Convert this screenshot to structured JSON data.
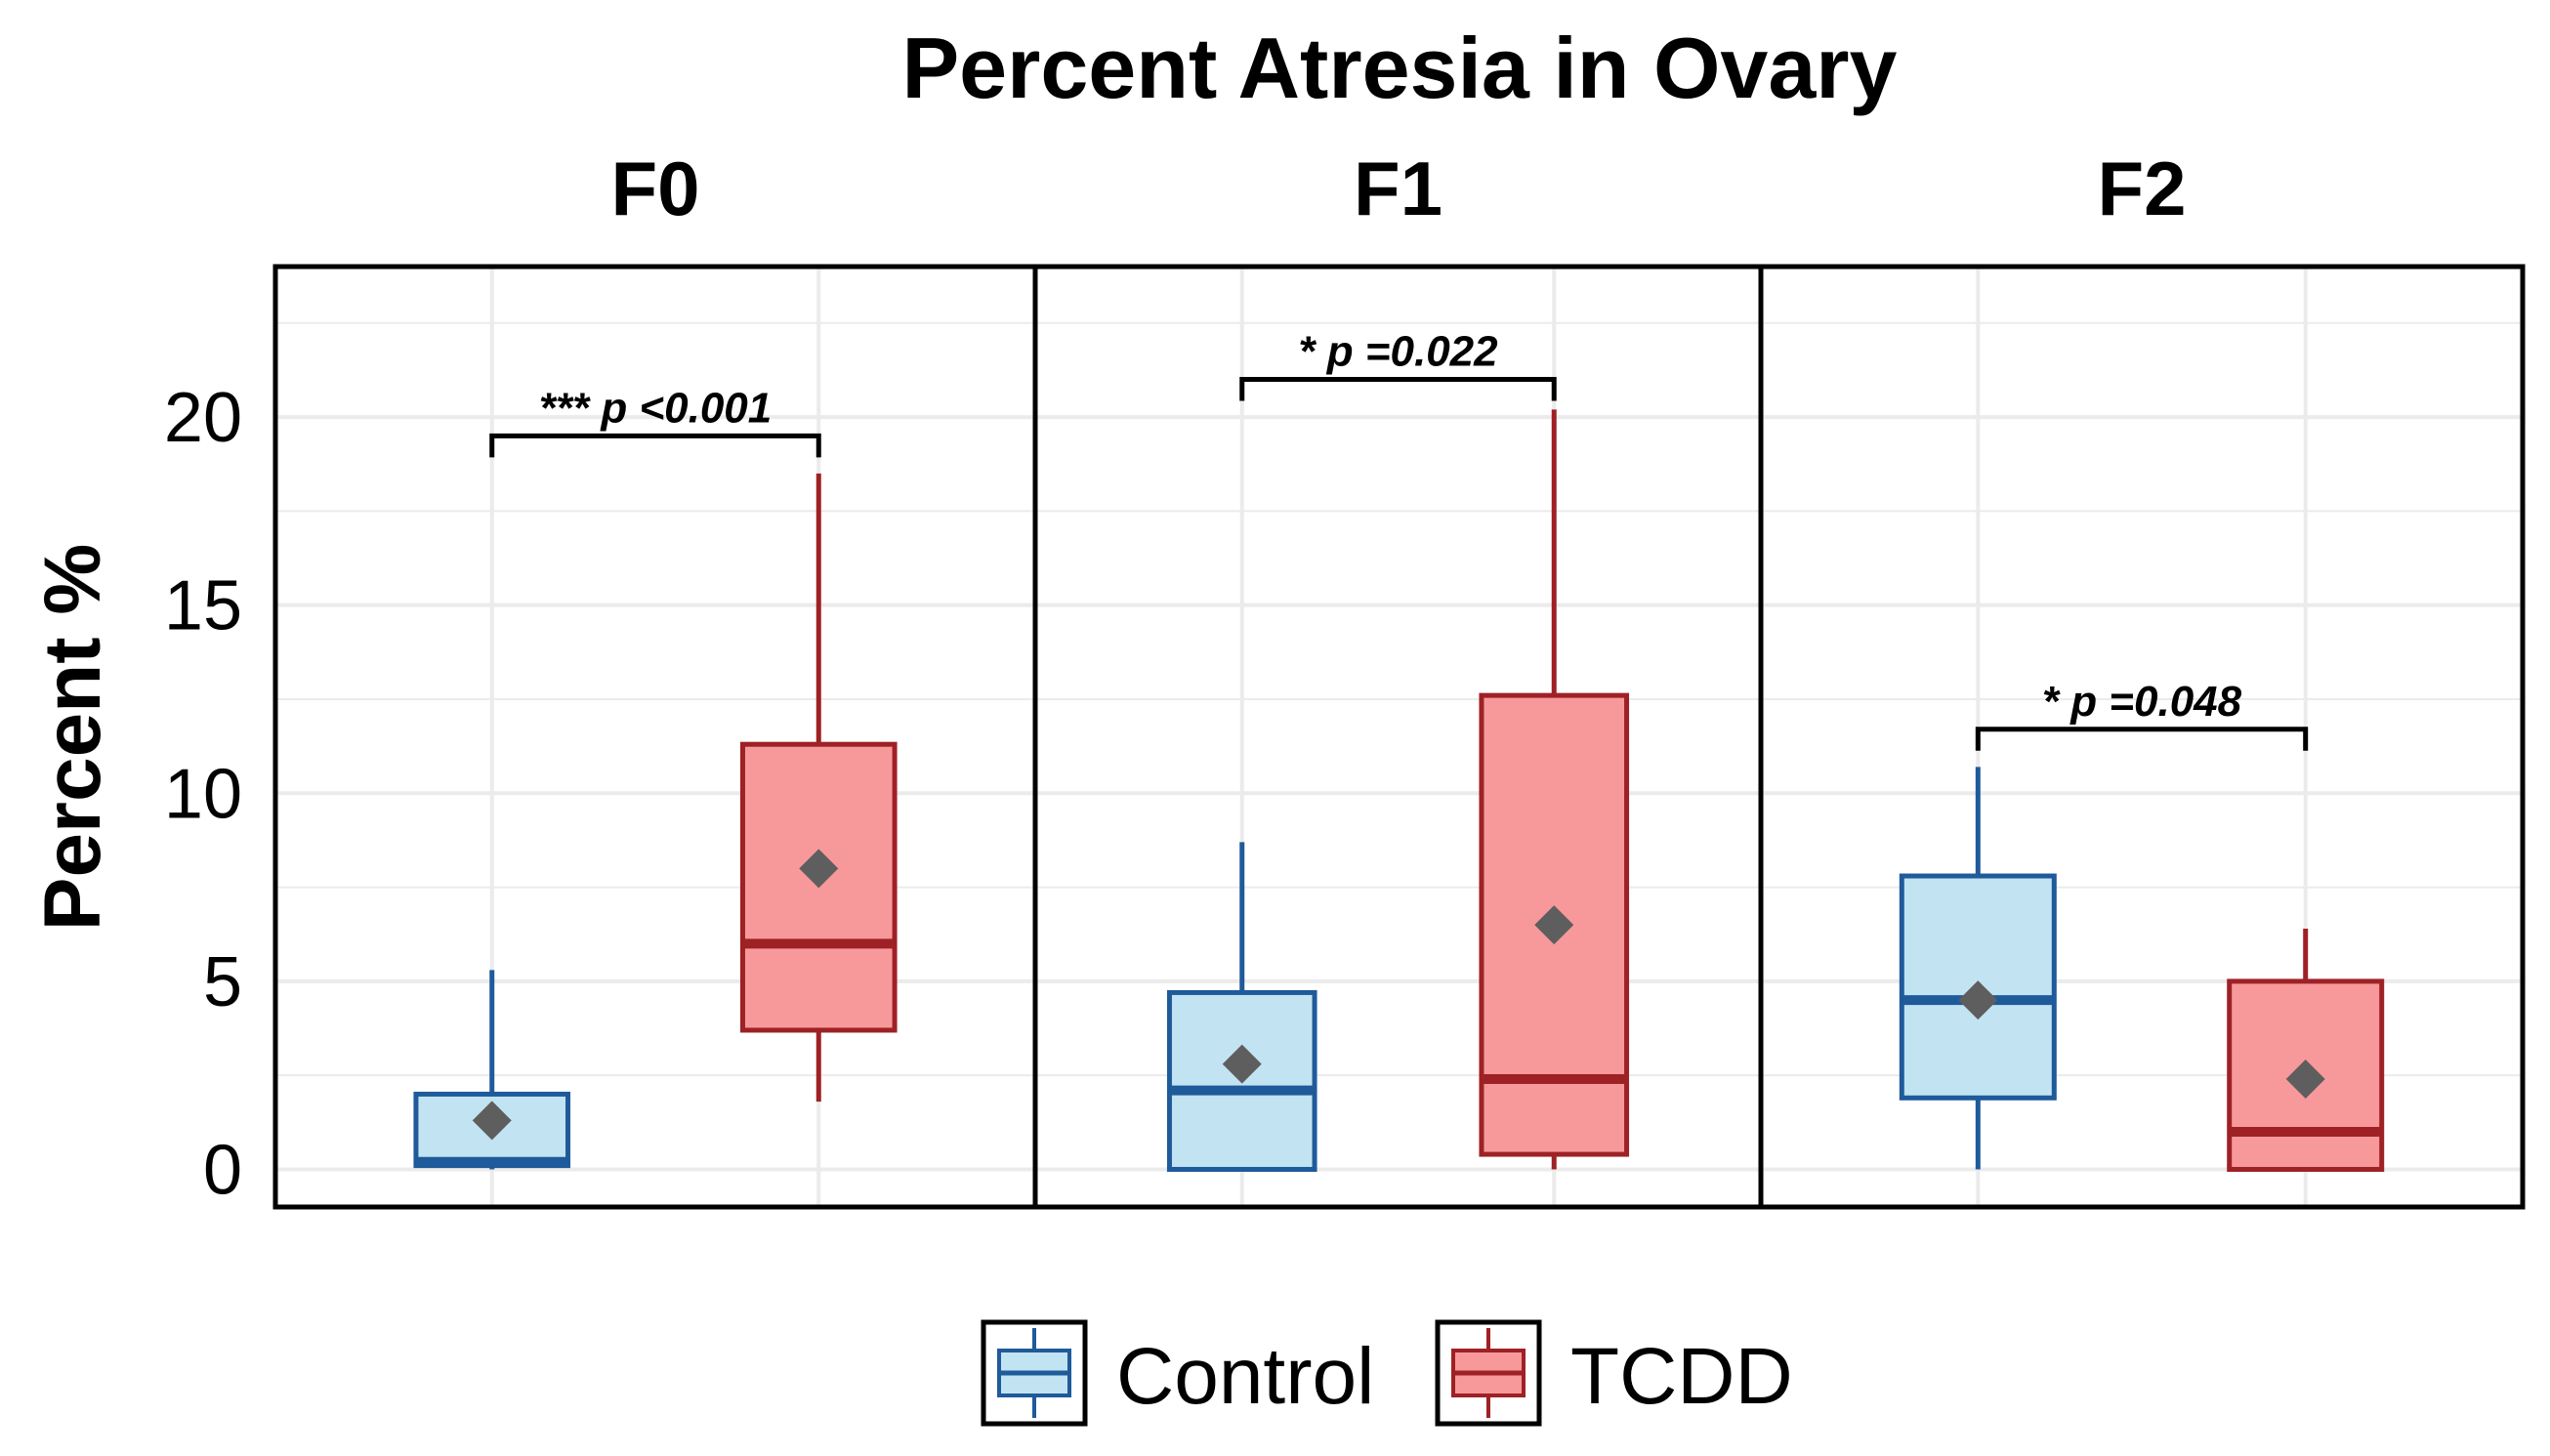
{
  "chart_data": {
    "type": "box",
    "title": "Percent Atresia in Ovary",
    "ylabel": "Percent %",
    "xlabel": "",
    "ylim": [
      -1,
      24
    ],
    "yticks": [
      0,
      5,
      10,
      15,
      20
    ],
    "grid": true,
    "legend_position": "bottom",
    "groups": [
      "Control",
      "TCDD"
    ],
    "colors": {
      "Control": {
        "fill": "#c2e3f2",
        "stroke": "#1f5a9a"
      },
      "TCDD": {
        "fill": "#f7999b",
        "stroke": "#9e2125"
      },
      "mean_marker": "#5e5e5e",
      "panel_border": "#000000",
      "grid": "#ebebeb"
    },
    "facets": [
      {
        "label": "F0",
        "boxes": [
          {
            "group": "Control",
            "whisker_low": 0,
            "q1": 0.1,
            "median": 0.2,
            "q3": 2.0,
            "whisker_high": 5.3,
            "mean": 1.3
          },
          {
            "group": "TCDD",
            "whisker_low": 1.8,
            "q1": 3.7,
            "median": 6.0,
            "q3": 11.3,
            "whisker_high": 18.5,
            "mean": 8.0
          }
        ],
        "significance": {
          "text": "*** p <0.001",
          "y": 19.5
        }
      },
      {
        "label": "F1",
        "boxes": [
          {
            "group": "Control",
            "whisker_low": 0,
            "q1": 0.0,
            "median": 2.1,
            "q3": 4.7,
            "whisker_high": 8.7,
            "mean": 2.8
          },
          {
            "group": "TCDD",
            "whisker_low": 0.0,
            "q1": 0.4,
            "median": 2.4,
            "q3": 12.6,
            "whisker_high": 20.2,
            "mean": 6.5
          }
        ],
        "significance": {
          "text": "* p =0.022",
          "y": 21.0
        }
      },
      {
        "label": "F2",
        "boxes": [
          {
            "group": "Control",
            "whisker_low": 0.0,
            "q1": 1.9,
            "median": 4.5,
            "q3": 7.8,
            "whisker_high": 10.7,
            "mean": 4.5
          },
          {
            "group": "TCDD",
            "whisker_low": 0.0,
            "q1": 0.0,
            "median": 1.0,
            "q3": 5.0,
            "whisker_high": 6.4,
            "mean": 2.4
          }
        ],
        "significance": {
          "text": "* p =0.048",
          "y": 11.7
        }
      }
    ]
  }
}
